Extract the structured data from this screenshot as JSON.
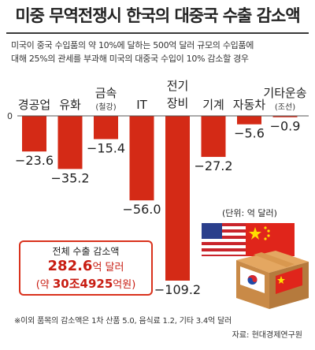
{
  "header": {
    "title": "미중 무역전쟁시 한국의 대중국 수출 감소액",
    "subtitle_line1": "미국이 중국 수입품의 약 10%에 달하는 500억 달러 규모의 수입품에",
    "subtitle_line2": "대해 25%의 관세를 부과해 미국의 대중국 수입이 10% 감소할 경우"
  },
  "chart_data": {
    "type": "bar",
    "categories": [
      "경공업",
      "유화",
      "금속",
      "IT",
      "전기 장비",
      "기계",
      "자동차",
      "기타운송"
    ],
    "category_lines": [
      [
        "경공업"
      ],
      [
        "유화"
      ],
      [
        "금속"
      ],
      [
        "IT"
      ],
      [
        "전기",
        "장비"
      ],
      [
        "기계"
      ],
      [
        "자동차"
      ],
      [
        "기타운송"
      ]
    ],
    "category_sub": [
      "",
      "",
      "(철강)",
      "",
      "",
      "",
      "",
      "(조선)"
    ],
    "values": [
      -23.6,
      -35.2,
      -15.4,
      -56.0,
      -109.2,
      -27.2,
      -5.6,
      -0.9
    ],
    "value_labels": [
      "−23.6",
      "−35.2",
      "−15.4",
      "−56.0",
      "−109.2",
      "−27.2",
      "−5.6",
      "−0.9"
    ],
    "zero_label": "0",
    "unit": "(단위: 억 달러)",
    "ylim": [
      -109.2,
      0
    ],
    "bar_color": "#d42a16"
  },
  "total": {
    "label": "전체 수출 감소액",
    "amount": "282.6",
    "amount_unit": "억 달러",
    "krw_prefix": "(약 ",
    "krw_value": "30조4925",
    "krw_suffix": "억원)"
  },
  "footnote": "※이외 품목의 감소액은 1차 산품 5.0, 음식료 1.2, 기타 3.4억 달러",
  "source": "자료: 현대경제연구원",
  "illustration": {
    "flag_us": "us-flag-icon",
    "flag_cn": "china-flag-icon",
    "flag_kr": "korea-flag-icon",
    "box": "shipping-box-icon"
  }
}
